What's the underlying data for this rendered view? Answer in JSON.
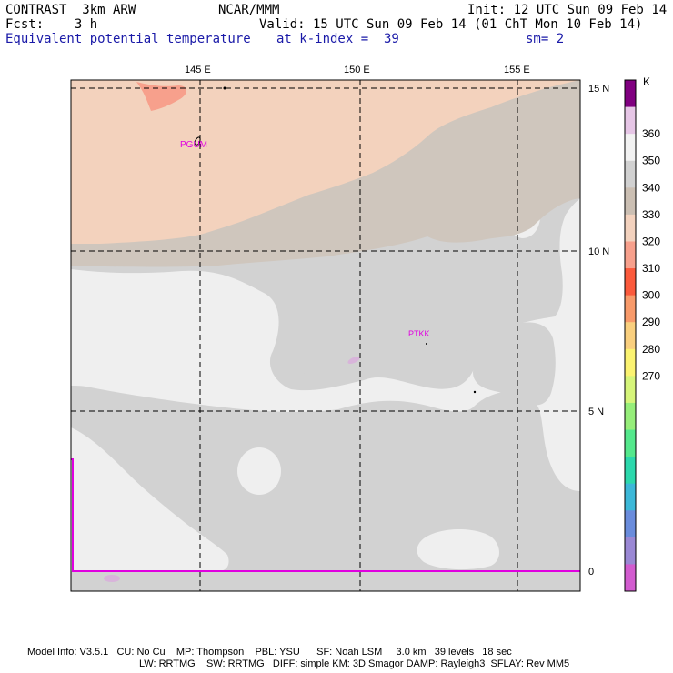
{
  "header": {
    "model": "CONTRAST  3km ARW",
    "org": "NCAR/MMM",
    "init": "Init: 12 UTC Sun 09 Feb 14",
    "fcst": "Fcst:    3 h",
    "valid": "Valid: 15 UTC Sun 09 Feb 14 (01 ChT Mon 10 Feb 14)",
    "field": "Equivalent potential temperature",
    "level": "at k-index =  39",
    "smooth": "sm= 2"
  },
  "map": {
    "lon_labels": [
      "145 E",
      "150 E",
      "155 E"
    ],
    "lat_labels": [
      "15 N",
      "10 N",
      "5 N",
      "0"
    ],
    "stations": [
      "PGUM",
      "PTKK"
    ],
    "colors": {
      "c340": "#f3d2bd",
      "c350": "#cfc6bd",
      "c360": "#d2d2d2",
      "c370": "#efefef",
      "c330": "#f7a08c",
      "c270": "#d8b4da",
      "boundary": "#e000e0"
    }
  },
  "colorbar": {
    "unit": "K",
    "labels": [
      "360",
      "350",
      "340",
      "330",
      "320",
      "310",
      "300",
      "290",
      "280",
      "270"
    ],
    "colors": [
      "#800080",
      "#e6c6e6",
      "#f2f2f2",
      "#d1d1d1",
      "#cbbfb3",
      "#f3d2be",
      "#f7a08c",
      "#fb5a3c",
      "#f89a6a",
      "#f9cf7e",
      "#fbf371",
      "#d6f57a",
      "#96ee7a",
      "#54e88c",
      "#2cd8ac",
      "#3cb8d8",
      "#6a8cdc",
      "#9a88d4",
      "#d25ccf"
    ]
  },
  "footer": {
    "line1": "Model Info: V3.5.1   CU: No Cu    MP: Thompson    PBL: YSU      SF: Noah LSM     3.0 km   39 levels   18 sec",
    "line2": "LW: RRTMG    SW: RRTMG   DIFF: simple KM: 3D Smagor DAMP: Rayleigh3  SFLAY: Rev MM5"
  }
}
